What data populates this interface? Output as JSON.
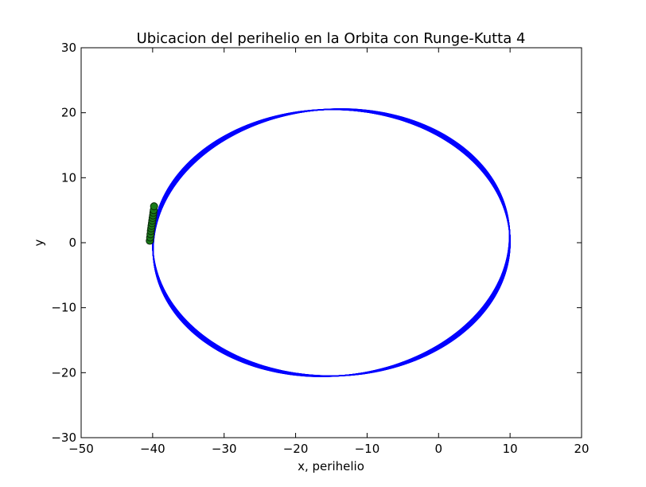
{
  "chart_data": {
    "type": "scatter",
    "title": "Ubicacion del perihelio en la Orbita con Runge-Kutta 4",
    "xlabel": "x, perihelio",
    "ylabel": "y",
    "xlim": [
      -50,
      20
    ],
    "ylim": [
      -30,
      30
    ],
    "xticks": [
      -50,
      -40,
      -30,
      -20,
      -10,
      0,
      10,
      20
    ],
    "yticks": [
      -30,
      -20,
      -10,
      0,
      10,
      20,
      30
    ],
    "xtick_labels": [
      "−50",
      "−40",
      "−30",
      "−20",
      "−10",
      "0",
      "10",
      "20"
    ],
    "ytick_labels": [
      "−30",
      "−20",
      "−10",
      "0",
      "10",
      "20",
      "30"
    ],
    "grid": false,
    "orbit": {
      "color": "#0000ff",
      "description": "precessing elliptical orbit traced many times",
      "perihelion_x": -40,
      "aphelion_x": 10,
      "rotation_deg_range": [
        0,
        8
      ],
      "semi_minor": 20.5
    },
    "perihelion_points": {
      "color": "#1a7a1a",
      "x": [
        -40.4,
        -40.35,
        -40.3,
        -40.25,
        -40.2,
        -40.15,
        -40.1,
        -40.05,
        -40.0,
        -39.95,
        -39.9,
        -39.85,
        -39.8
      ],
      "y": [
        0.3,
        0.8,
        1.3,
        1.8,
        2.2,
        2.6,
        3.0,
        3.4,
        3.8,
        4.2,
        4.6,
        5.0,
        5.6
      ]
    },
    "colors": {
      "orbit": "#0000ff",
      "perihelion": "#1a7a1a",
      "perihelion_edge": "#0a2a0a",
      "axes": "#000000"
    }
  }
}
